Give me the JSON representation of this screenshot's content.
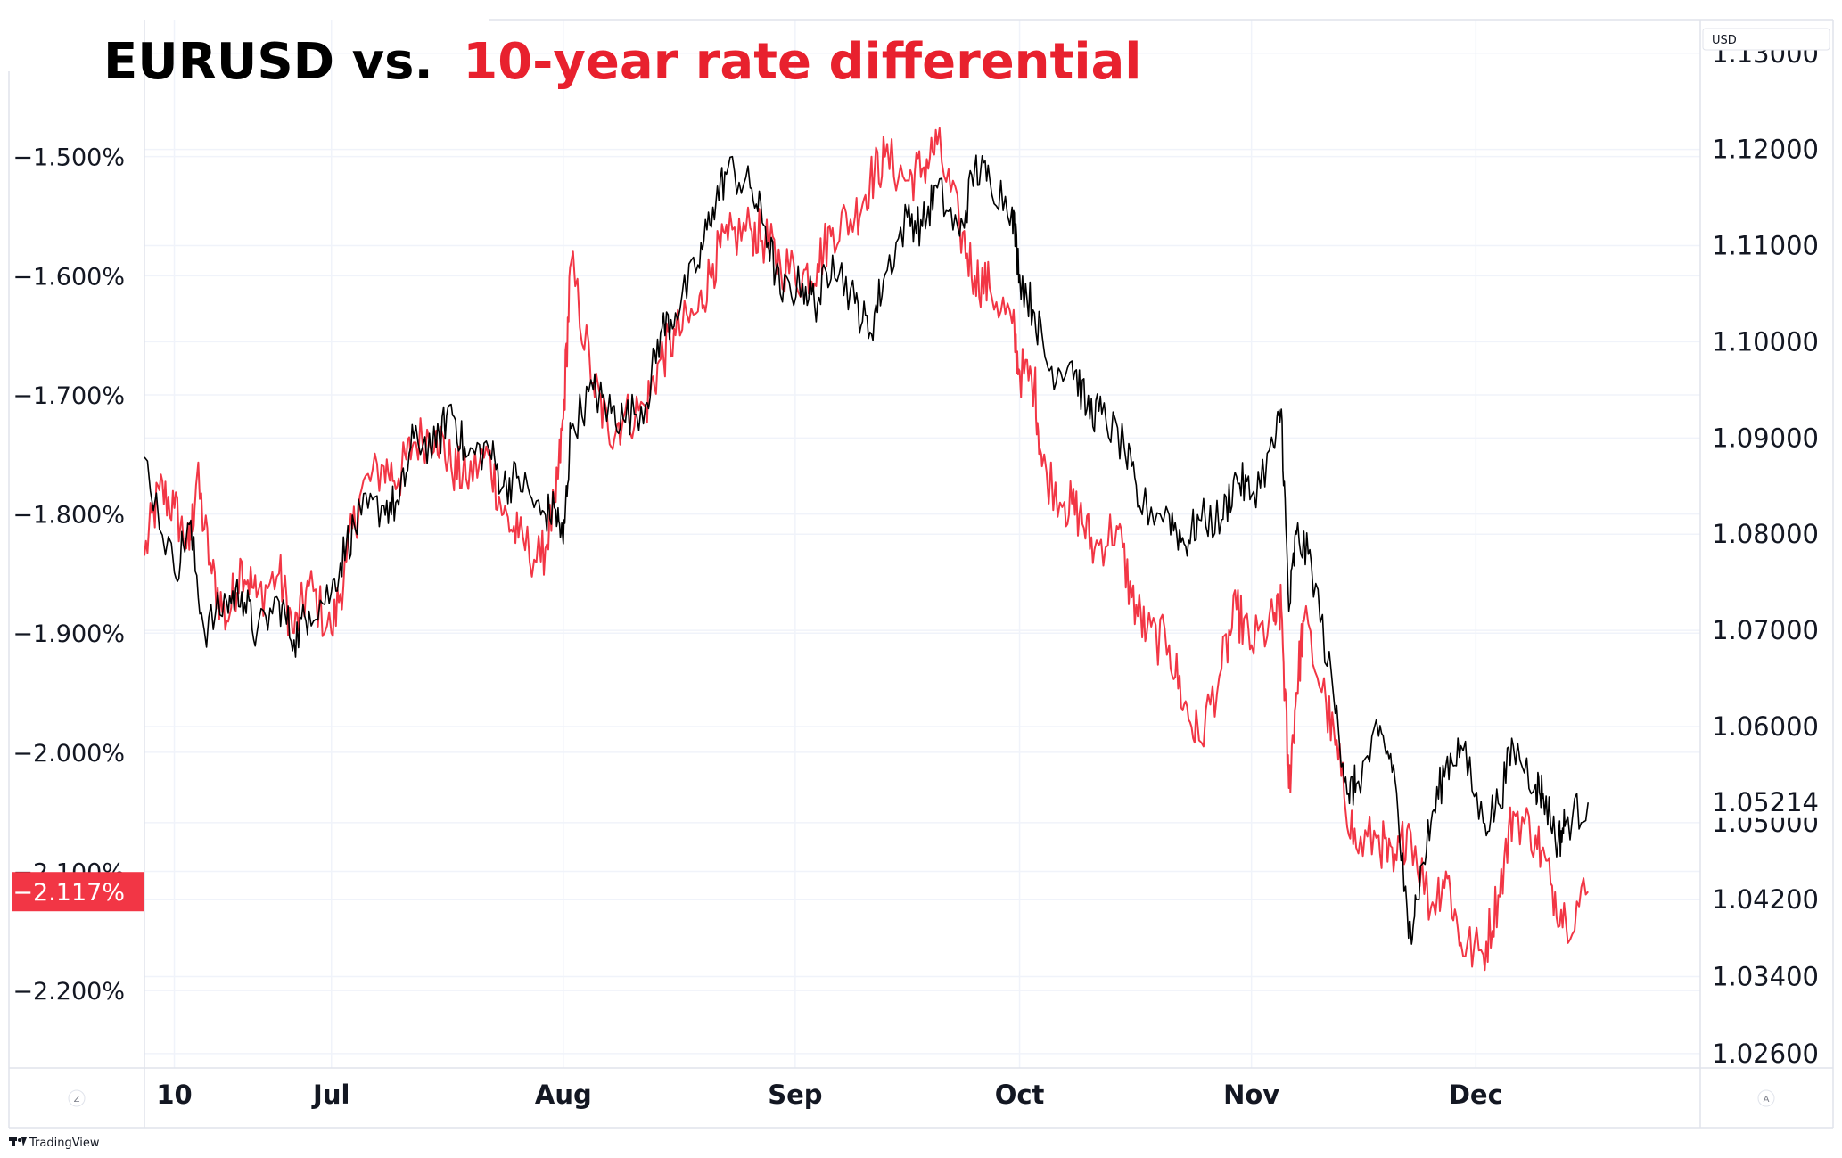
{
  "title": {
    "part1": "EURUSD vs.",
    "part2": "10-year rate differential",
    "color1": "#000000",
    "color2": "#e8212e"
  },
  "currency_label": "USD",
  "branding": "TradingView",
  "corner_buttons": {
    "left": "Z",
    "right": "A"
  },
  "colors": {
    "eurusd": "#000000",
    "differential": "#f23645",
    "badge_differential": "#f23645",
    "grid": "#f0f3fa",
    "axis_border": "#e0e3eb"
  },
  "chart_data": {
    "type": "line",
    "title": "EURUSD vs. 10-year rate differential",
    "x_tick_labels": [
      "10",
      "Jul",
      "Aug",
      "Sep",
      "Oct",
      "Nov",
      "Dec"
    ],
    "x_range": [
      "2024-06-06",
      "2024-12-31"
    ],
    "y_left": {
      "label": "",
      "ticks": [
        "−1.500%",
        "−1.600%",
        "−1.700%",
        "−1.800%",
        "−1.900%",
        "−2.000%",
        "−2.100%",
        "−2.200%"
      ],
      "range": [
        -2.265,
        -1.385
      ],
      "last_value_label": "−2.117%"
    },
    "y_right": {
      "label": "USD",
      "ticks": [
        "1.12000",
        "1.11000",
        "1.10000",
        "1.09000",
        "1.08000",
        "1.07000",
        "1.06000",
        "1.05000",
        "1.04200",
        "1.03400",
        "1.02600",
        "1.13000"
      ],
      "range": [
        1.0245,
        1.1335
      ],
      "last_value_label": "1.05214"
    },
    "series": [
      {
        "name": "EURUSD",
        "axis": "right",
        "color": "#000000",
        "points": [
          [
            "2024-06-06",
            1.088
          ],
          [
            "2024-06-10",
            1.076
          ],
          [
            "2024-06-12",
            1.081
          ],
          [
            "2024-06-14",
            1.07
          ],
          [
            "2024-06-17",
            1.073
          ],
          [
            "2024-06-19",
            1.074
          ],
          [
            "2024-06-21",
            1.0695
          ],
          [
            "2024-06-24",
            1.073
          ],
          [
            "2024-06-26",
            1.069
          ],
          [
            "2024-06-28",
            1.072
          ],
          [
            "2024-07-01",
            1.074
          ],
          [
            "2024-07-03",
            1.079
          ],
          [
            "2024-07-05",
            1.082
          ],
          [
            "2024-07-08",
            1.083
          ],
          [
            "2024-07-10",
            1.083
          ],
          [
            "2024-07-12",
            1.09
          ],
          [
            "2024-07-15",
            1.089
          ],
          [
            "2024-07-17",
            1.0935
          ],
          [
            "2024-07-19",
            1.088
          ],
          [
            "2024-07-22",
            1.089
          ],
          [
            "2024-07-24",
            1.085
          ],
          [
            "2024-07-26",
            1.086
          ],
          [
            "2024-07-29",
            1.082
          ],
          [
            "2024-07-31",
            1.0825
          ],
          [
            "2024-08-01",
            1.079
          ],
          [
            "2024-08-02",
            1.091
          ],
          [
            "2024-08-05",
            1.095
          ],
          [
            "2024-08-07",
            1.093
          ],
          [
            "2024-08-09",
            1.092
          ],
          [
            "2024-08-12",
            1.0935
          ],
          [
            "2024-08-14",
            1.101
          ],
          [
            "2024-08-16",
            1.103
          ],
          [
            "2024-08-19",
            1.108
          ],
          [
            "2024-08-21",
            1.114
          ],
          [
            "2024-08-23",
            1.118
          ],
          [
            "2024-08-26",
            1.116
          ],
          [
            "2024-08-28",
            1.112
          ],
          [
            "2024-08-30",
            1.105
          ],
          [
            "2024-09-02",
            1.106
          ],
          [
            "2024-09-04",
            1.104
          ],
          [
            "2024-09-06",
            1.109
          ],
          [
            "2024-09-09",
            1.104
          ],
          [
            "2024-09-11",
            1.101
          ],
          [
            "2024-09-13",
            1.107
          ],
          [
            "2024-09-16",
            1.113
          ],
          [
            "2024-09-18",
            1.112
          ],
          [
            "2024-09-20",
            1.116
          ],
          [
            "2024-09-23",
            1.111
          ],
          [
            "2024-09-25",
            1.118
          ],
          [
            "2024-09-27",
            1.117
          ],
          [
            "2024-09-30",
            1.114
          ],
          [
            "2024-10-01",
            1.107
          ],
          [
            "2024-10-03",
            1.103
          ],
          [
            "2024-10-05",
            1.097
          ],
          [
            "2024-10-08",
            1.098
          ],
          [
            "2024-10-10",
            1.093
          ],
          [
            "2024-10-12",
            1.0925
          ],
          [
            "2024-10-15",
            1.089
          ],
          [
            "2024-10-17",
            1.083
          ],
          [
            "2024-10-21",
            1.082
          ],
          [
            "2024-10-23",
            1.079
          ],
          [
            "2024-10-25",
            1.0815
          ],
          [
            "2024-10-28",
            1.0815
          ],
          [
            "2024-10-30",
            1.086
          ],
          [
            "2024-11-01",
            1.084
          ],
          [
            "2024-11-04",
            1.089
          ],
          [
            "2024-11-05",
            1.093
          ],
          [
            "2024-11-06",
            1.072
          ],
          [
            "2024-11-07",
            1.08
          ],
          [
            "2024-11-09",
            1.077
          ],
          [
            "2024-11-12",
            1.063
          ],
          [
            "2024-11-14",
            1.053
          ],
          [
            "2024-11-15",
            1.054
          ],
          [
            "2024-11-18",
            1.059
          ],
          [
            "2024-11-20",
            1.056
          ],
          [
            "2024-11-22",
            1.038
          ],
          [
            "2024-11-23",
            1.042
          ],
          [
            "2024-11-25",
            1.05
          ],
          [
            "2024-11-27",
            1.056
          ],
          [
            "2024-11-29",
            1.058
          ],
          [
            "2024-12-02",
            1.05
          ],
          [
            "2024-12-04",
            1.052
          ],
          [
            "2024-12-06",
            1.058
          ],
          [
            "2024-12-09",
            1.054
          ],
          [
            "2024-12-10",
            1.053
          ],
          [
            "2024-12-12",
            1.048
          ],
          [
            "2024-12-13",
            1.05
          ],
          [
            "2024-12-16",
            1.0521
          ]
        ]
      },
      {
        "name": "10-year rate differential",
        "axis": "left",
        "color": "#f23645",
        "points": [
          [
            "2024-06-06",
            -1.835
          ],
          [
            "2024-06-08",
            -1.78
          ],
          [
            "2024-06-10",
            -1.795
          ],
          [
            "2024-06-12",
            -1.83
          ],
          [
            "2024-06-13",
            -1.77
          ],
          [
            "2024-06-15",
            -1.85
          ],
          [
            "2024-06-17",
            -1.89
          ],
          [
            "2024-06-19",
            -1.84
          ],
          [
            "2024-06-21",
            -1.87
          ],
          [
            "2024-06-24",
            -1.85
          ],
          [
            "2024-06-26",
            -1.9
          ],
          [
            "2024-06-28",
            -1.86
          ],
          [
            "2024-07-01",
            -1.9
          ],
          [
            "2024-07-03",
            -1.84
          ],
          [
            "2024-07-05",
            -1.78
          ],
          [
            "2024-07-08",
            -1.76
          ],
          [
            "2024-07-10",
            -1.77
          ],
          [
            "2024-07-12",
            -1.74
          ],
          [
            "2024-07-15",
            -1.73
          ],
          [
            "2024-07-17",
            -1.76
          ],
          [
            "2024-07-19",
            -1.77
          ],
          [
            "2024-07-22",
            -1.75
          ],
          [
            "2024-07-24",
            -1.8
          ],
          [
            "2024-07-26",
            -1.82
          ],
          [
            "2024-07-29",
            -1.84
          ],
          [
            "2024-07-31",
            -1.79
          ],
          [
            "2024-08-01",
            -1.72
          ],
          [
            "2024-08-02",
            -1.59
          ],
          [
            "2024-08-05",
            -1.69
          ],
          [
            "2024-08-07",
            -1.73
          ],
          [
            "2024-08-09",
            -1.72
          ],
          [
            "2024-08-12",
            -1.71
          ],
          [
            "2024-08-14",
            -1.67
          ],
          [
            "2024-08-16",
            -1.65
          ],
          [
            "2024-08-19",
            -1.63
          ],
          [
            "2024-08-21",
            -1.59
          ],
          [
            "2024-08-23",
            -1.57
          ],
          [
            "2024-08-26",
            -1.56
          ],
          [
            "2024-08-28",
            -1.57
          ],
          [
            "2024-08-30",
            -1.59
          ],
          [
            "2024-09-02",
            -1.6
          ],
          [
            "2024-09-04",
            -1.59
          ],
          [
            "2024-09-06",
            -1.56
          ],
          [
            "2024-09-09",
            -1.55
          ],
          [
            "2024-09-11",
            -1.52
          ],
          [
            "2024-09-13",
            -1.5
          ],
          [
            "2024-09-16",
            -1.52
          ],
          [
            "2024-09-18",
            -1.51
          ],
          [
            "2024-09-20",
            -1.49
          ],
          [
            "2024-09-23",
            -1.56
          ],
          [
            "2024-09-25",
            -1.6
          ],
          [
            "2024-09-27",
            -1.61
          ],
          [
            "2024-09-30",
            -1.64
          ],
          [
            "2024-10-01",
            -1.68
          ],
          [
            "2024-10-03",
            -1.69
          ],
          [
            "2024-10-04",
            -1.76
          ],
          [
            "2024-10-07",
            -1.79
          ],
          [
            "2024-10-09",
            -1.8
          ],
          [
            "2024-10-11",
            -1.83
          ],
          [
            "2024-10-14",
            -1.81
          ],
          [
            "2024-10-16",
            -1.87
          ],
          [
            "2024-10-18",
            -1.9
          ],
          [
            "2024-10-21",
            -1.91
          ],
          [
            "2024-10-23",
            -1.96
          ],
          [
            "2024-10-25",
            -1.99
          ],
          [
            "2024-10-28",
            -1.93
          ],
          [
            "2024-10-30",
            -1.88
          ],
          [
            "2024-11-01",
            -1.91
          ],
          [
            "2024-11-04",
            -1.89
          ],
          [
            "2024-11-05",
            -1.88
          ],
          [
            "2024-11-06",
            -2.03
          ],
          [
            "2024-11-07",
            -1.95
          ],
          [
            "2024-11-08",
            -1.89
          ],
          [
            "2024-11-11",
            -1.96
          ],
          [
            "2024-11-13",
            -2.02
          ],
          [
            "2024-11-15",
            -2.08
          ],
          [
            "2024-11-18",
            -2.07
          ],
          [
            "2024-11-20",
            -2.1
          ],
          [
            "2024-11-22",
            -2.06
          ],
          [
            "2024-11-25",
            -2.13
          ],
          [
            "2024-11-27",
            -2.1
          ],
          [
            "2024-11-29",
            -2.16
          ],
          [
            "2024-12-02",
            -2.17
          ],
          [
            "2024-12-04",
            -2.12
          ],
          [
            "2024-12-06",
            -2.05
          ],
          [
            "2024-12-09",
            -2.07
          ],
          [
            "2024-12-11",
            -2.11
          ],
          [
            "2024-12-13",
            -2.14
          ],
          [
            "2024-12-16",
            -2.117
          ]
        ]
      }
    ],
    "grid": true,
    "legend": "none"
  }
}
